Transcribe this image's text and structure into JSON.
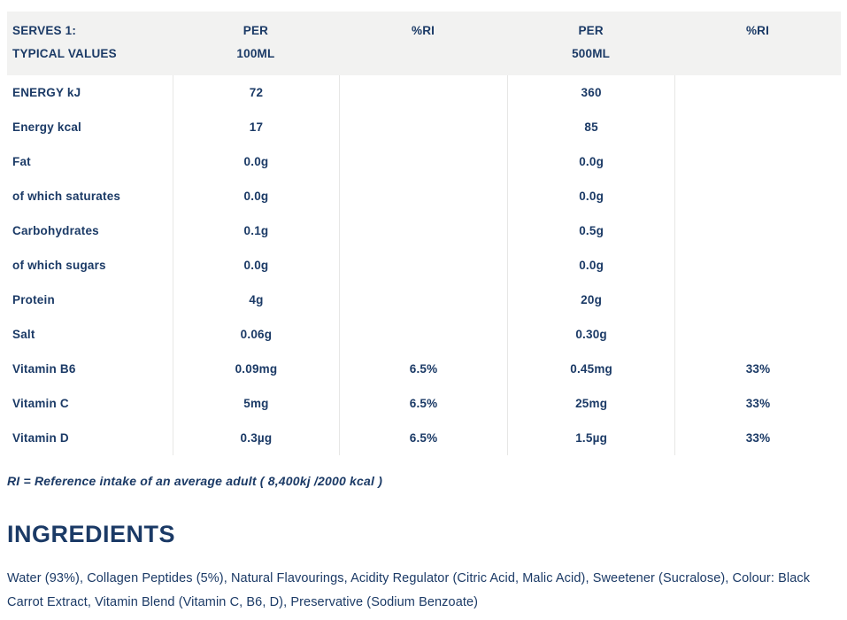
{
  "colors": {
    "navy": "#1b3a66",
    "header_bg": "#f2f2f1",
    "divider": "#e7e7e5"
  },
  "table": {
    "header": {
      "serves": "SERVES 1:\nTYPICAL VALUES",
      "per_100ml": "PER\n100ML",
      "ri_100ml": "%RI",
      "per_500ml": "PER\n500ML",
      "ri_500ml": "%RI"
    },
    "rows": [
      {
        "label": "ENERGY kJ",
        "per100": "72",
        "ri100": "",
        "per500": "360",
        "ri500": ""
      },
      {
        "label": "Energy kcal",
        "per100": "17",
        "ri100": "",
        "per500": "85",
        "ri500": ""
      },
      {
        "label": "Fat",
        "per100": "0.0g",
        "ri100": "",
        "per500": "0.0g",
        "ri500": ""
      },
      {
        "label": "of which saturates",
        "per100": "0.0g",
        "ri100": "",
        "per500": "0.0g",
        "ri500": ""
      },
      {
        "label": "Carbohydrates",
        "per100": "0.1g",
        "ri100": "",
        "per500": "0.5g",
        "ri500": ""
      },
      {
        "label": "of which sugars",
        "per100": "0.0g",
        "ri100": "",
        "per500": "0.0g",
        "ri500": ""
      },
      {
        "label": "Protein",
        "per100": "4g",
        "ri100": "",
        "per500": "20g",
        "ri500": ""
      },
      {
        "label": "Salt",
        "per100": "0.06g",
        "ri100": "",
        "per500": "0.30g",
        "ri500": ""
      },
      {
        "label": "Vitamin B6",
        "per100": "0.09mg",
        "ri100": "6.5%",
        "per500": "0.45mg",
        "ri500": "33%"
      },
      {
        "label": "Vitamin C",
        "per100": "5mg",
        "ri100": "6.5%",
        "per500": "25mg",
        "ri500": "33%"
      },
      {
        "label": "Vitamin D",
        "per100": "0.3µg",
        "ri100": "6.5%",
        "per500": "1.5µg",
        "ri500": "33%"
      }
    ]
  },
  "footnote": "RI = Reference intake of an average adult ( 8,400kj /2000 kcal )",
  "ingredients": {
    "title": "INGREDIENTS",
    "text": "Water (93%), Collagen Peptides (5%), Natural Flavourings, Acidity Regulator (Citric Acid, Malic Acid), Sweetener (Sucralose), Colour: Black Carrot Extract, Vitamin Blend (Vitamin C, B6, D), Preservative (Sodium Benzoate)"
  }
}
